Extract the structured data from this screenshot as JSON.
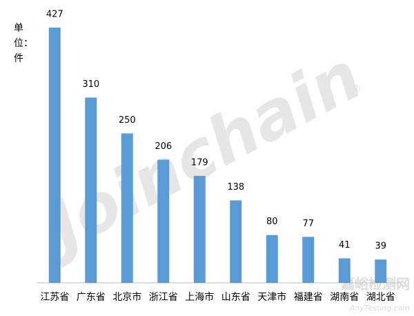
{
  "chart_data": {
    "type": "bar",
    "unit_label": "单位：件",
    "categories": [
      "江苏省",
      "广东省",
      "北京市",
      "浙江省",
      "上海市",
      "山东省",
      "天津市",
      "福建省",
      "湖南省",
      "湖北省"
    ],
    "values": [
      427,
      310,
      250,
      206,
      179,
      138,
      80,
      77,
      41,
      39
    ],
    "color": "#5b9bd5",
    "watermark": {
      "logo": "Joinchain",
      "registered": "®",
      "site_cn": "嘉峪检测网",
      "site_en": "AnyTesting.com"
    }
  }
}
